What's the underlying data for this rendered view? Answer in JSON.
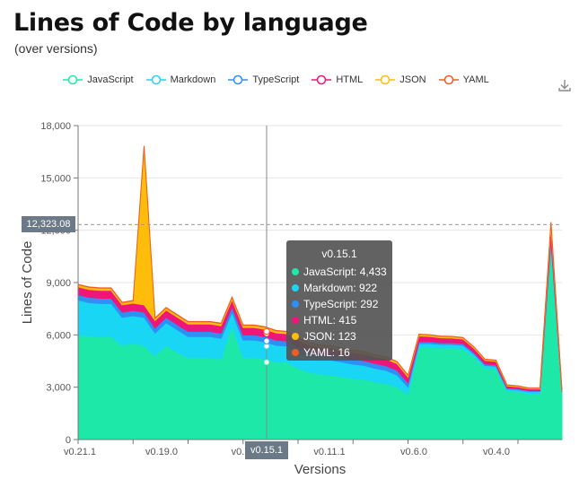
{
  "header": {
    "title": "Lines of Code by language",
    "subtitle": "(over versions)"
  },
  "toolbar": {
    "download_icon": "download-icon"
  },
  "chart_data": {
    "type": "area",
    "stacked": true,
    "xlabel": "Versions",
    "ylabel": "Lines of Code",
    "ylim": [
      0,
      18000
    ],
    "yticks": [
      "0",
      "3,000",
      "6,000",
      "9,000",
      "12,000",
      "15,000",
      "18,000"
    ],
    "x_tick_labels": [
      "v0.21.1",
      "v0.19.0",
      "v0.1",
      "v0.11.1",
      "v0.6.0",
      "v0.4.0"
    ],
    "grid": "horizontal",
    "legend": "top",
    "point_count": 45,
    "series": [
      {
        "name": "JavaScript",
        "color": "#1ee8a8",
        "values": [
          6000,
          5950,
          5900,
          5900,
          5400,
          5500,
          5400,
          4800,
          5400,
          5000,
          4700,
          4700,
          4700,
          4600,
          6500,
          4700,
          4700,
          4600,
          4450,
          4433,
          4100,
          3850,
          3750,
          3700,
          3600,
          3500,
          3450,
          3300,
          3200,
          3000,
          2600,
          5300,
          5300,
          5250,
          5250,
          5200,
          4750,
          4100,
          4050,
          2800,
          2750,
          2650,
          2650,
          11200,
          2700
        ]
      },
      {
        "name": "Markdown",
        "color": "#1ad6f5",
        "values": [
          2000,
          1900,
          1900,
          1900,
          1600,
          1600,
          1600,
          1300,
          1300,
          1300,
          1200,
          1200,
          1200,
          1200,
          800,
          1000,
          1000,
          1000,
          950,
          922,
          900,
          880,
          860,
          850,
          840,
          820,
          800,
          780,
          760,
          700,
          400,
          200,
          200,
          200,
          200,
          200,
          150,
          150,
          150,
          100,
          100,
          100,
          100,
          150,
          30
        ]
      },
      {
        "name": "TypeScript",
        "color": "#2f8ff5",
        "values": [
          300,
          300,
          300,
          300,
          300,
          300,
          300,
          300,
          300,
          300,
          300,
          300,
          300,
          300,
          300,
          300,
          300,
          300,
          295,
          292,
          290,
          288,
          285,
          283,
          280,
          278,
          275,
          273,
          270,
          265,
          250,
          120,
          110,
          100,
          100,
          100,
          90,
          80,
          80,
          60,
          60,
          50,
          50,
          200,
          20
        ]
      },
      {
        "name": "HTML",
        "color": "#f0157b",
        "values": [
          450,
          450,
          450,
          450,
          420,
          420,
          420,
          420,
          420,
          420,
          420,
          420,
          420,
          420,
          420,
          420,
          420,
          420,
          418,
          415,
          410,
          408,
          405,
          403,
          400,
          398,
          395,
          393,
          390,
          385,
          330,
          320,
          300,
          280,
          270,
          260,
          240,
          210,
          200,
          120,
          110,
          100,
          100,
          600,
          40
        ]
      },
      {
        "name": "JSON",
        "color": "#fdbd0a",
        "values": [
          130,
          130,
          130,
          130,
          130,
          130,
          9100,
          130,
          130,
          130,
          130,
          130,
          130,
          130,
          130,
          130,
          130,
          130,
          125,
          123,
          120,
          120,
          118,
          118,
          116,
          115,
          113,
          112,
          110,
          108,
          100,
          90,
          85,
          80,
          80,
          80,
          70,
          60,
          60,
          50,
          50,
          40,
          40,
          300,
          20
        ]
      },
      {
        "name": "YAML",
        "color": "#f05d23",
        "values": [
          20,
          20,
          20,
          20,
          20,
          20,
          20,
          20,
          20,
          20,
          20,
          20,
          20,
          20,
          20,
          20,
          20,
          20,
          18,
          16,
          16,
          16,
          16,
          16,
          16,
          16,
          16,
          16,
          16,
          16,
          16,
          14,
          14,
          14,
          14,
          14,
          12,
          12,
          12,
          10,
          10,
          10,
          10,
          20,
          10
        ]
      }
    ],
    "crosshair": {
      "x_label": "v0.15.1",
      "y_label": "12,323.08",
      "y_value": 12323.08,
      "index": 19
    },
    "tooltip": {
      "title": "v0.15.1",
      "rows": [
        {
          "text": "JavaScript: 4,433",
          "color": "#1ee8a8"
        },
        {
          "text": "Markdown: 922",
          "color": "#1ad6f5"
        },
        {
          "text": "TypeScript: 292",
          "color": "#2f8ff5"
        },
        {
          "text": "HTML: 415",
          "color": "#f0157b"
        },
        {
          "text": "JSON: 123",
          "color": "#fdbd0a"
        },
        {
          "text": "YAML: 16",
          "color": "#f05d23"
        }
      ]
    }
  }
}
